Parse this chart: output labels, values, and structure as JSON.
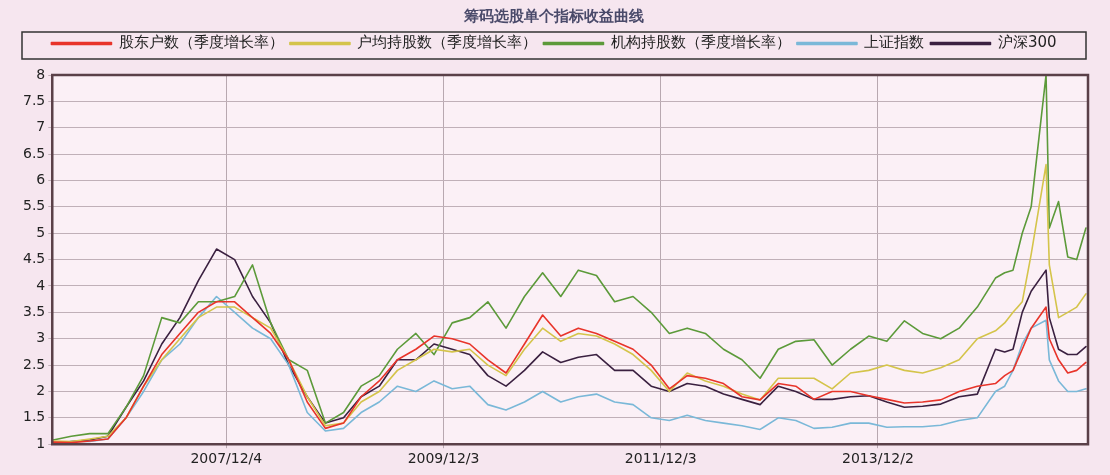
{
  "chart_data": {
    "type": "line",
    "title": "筹码选股单个指标收益曲线",
    "x": [
      "2006-05",
      "2006-07",
      "2006-09",
      "2006-11",
      "2007-01",
      "2007-03",
      "2007-05",
      "2007-07",
      "2007-09",
      "2007-11",
      "2008-01",
      "2008-03",
      "2008-05",
      "2008-07",
      "2008-09",
      "2008-11",
      "2009-01",
      "2009-03",
      "2009-05",
      "2009-07",
      "2009-09",
      "2009-11",
      "2010-01",
      "2010-03",
      "2010-05",
      "2010-07",
      "2010-09",
      "2010-11",
      "2011-01",
      "2011-03",
      "2011-05",
      "2011-07",
      "2011-09",
      "2011-11",
      "2012-01",
      "2012-03",
      "2012-05",
      "2012-07",
      "2012-09",
      "2012-11",
      "2013-01",
      "2013-03",
      "2013-05",
      "2013-07",
      "2013-09",
      "2013-11",
      "2014-01",
      "2014-03",
      "2014-05",
      "2014-07",
      "2014-09",
      "2014-11",
      "2015-01",
      "2015-02",
      "2015-03",
      "2015-04",
      "2015-05",
      "2015-06-20",
      "2015-07",
      "2015-08",
      "2015-09",
      "2015-10",
      "2015-11"
    ],
    "series": [
      {
        "name": "股东户数（季度增长率）",
        "color": "#e8342a",
        "values": [
          1.04,
          1.03,
          1.06,
          1.1,
          1.5,
          2.1,
          2.7,
          3.1,
          3.5,
          3.7,
          3.7,
          3.4,
          3.1,
          2.6,
          1.8,
          1.3,
          1.4,
          1.9,
          2.2,
          2.6,
          2.8,
          3.05,
          3.0,
          2.9,
          2.6,
          2.35,
          2.9,
          3.45,
          3.05,
          3.2,
          3.1,
          2.95,
          2.8,
          2.5,
          2.05,
          2.3,
          2.25,
          2.15,
          1.9,
          1.84,
          2.15,
          2.1,
          1.85,
          2.0,
          2.0,
          1.92,
          1.85,
          1.78,
          1.8,
          1.84,
          2.0,
          2.1,
          2.15,
          2.3,
          2.4,
          2.8,
          3.2,
          3.6,
          3.0,
          2.6,
          2.35,
          2.4,
          2.55
        ]
      },
      {
        "name": "户均持股数（季度增长率）",
        "color": "#d4c44a",
        "values": [
          1.06,
          1.05,
          1.1,
          1.15,
          1.5,
          2.1,
          2.6,
          3.0,
          3.4,
          3.6,
          3.6,
          3.4,
          3.2,
          2.6,
          1.9,
          1.35,
          1.4,
          1.8,
          2.0,
          2.4,
          2.6,
          2.8,
          2.75,
          2.8,
          2.5,
          2.3,
          2.8,
          3.2,
          2.95,
          3.1,
          3.05,
          2.9,
          2.7,
          2.4,
          2.0,
          2.35,
          2.2,
          2.1,
          1.95,
          1.84,
          2.25,
          2.25,
          2.25,
          2.05,
          2.35,
          2.4,
          2.5,
          2.4,
          2.35,
          2.45,
          2.6,
          3.0,
          3.15,
          3.3,
          3.5,
          3.7,
          4.6,
          6.3,
          4.4,
          3.4,
          3.5,
          3.6,
          3.85
        ]
      },
      {
        "name": "机构持股数（季度增长率）",
        "color": "#5c9a3a",
        "values": [
          1.08,
          1.15,
          1.2,
          1.2,
          1.7,
          2.3,
          3.4,
          3.3,
          3.7,
          3.7,
          3.8,
          4.4,
          3.3,
          2.6,
          2.4,
          1.4,
          1.6,
          2.1,
          2.3,
          2.8,
          3.1,
          2.7,
          3.3,
          3.4,
          3.7,
          3.2,
          3.8,
          4.25,
          3.8,
          4.3,
          4.2,
          3.7,
          3.8,
          3.5,
          3.1,
          3.2,
          3.1,
          2.8,
          2.6,
          2.25,
          2.8,
          2.95,
          2.98,
          2.5,
          2.8,
          3.05,
          2.95,
          3.34,
          3.1,
          3.0,
          3.2,
          3.6,
          4.15,
          4.25,
          4.3,
          5.0,
          5.5,
          8.0,
          5.1,
          5.6,
          4.55,
          4.5,
          5.1
        ]
      },
      {
        "name": "上证指数",
        "color": "#7ab8d8",
        "values": [
          1.02,
          1.05,
          1.05,
          1.1,
          1.5,
          2.0,
          2.6,
          2.9,
          3.4,
          3.8,
          3.5,
          3.2,
          3.0,
          2.5,
          1.6,
          1.25,
          1.3,
          1.6,
          1.8,
          2.1,
          2.0,
          2.2,
          2.05,
          2.1,
          1.75,
          1.65,
          1.8,
          2.0,
          1.8,
          1.9,
          1.95,
          1.8,
          1.75,
          1.5,
          1.45,
          1.55,
          1.45,
          1.4,
          1.35,
          1.28,
          1.5,
          1.45,
          1.3,
          1.32,
          1.4,
          1.4,
          1.32,
          1.33,
          1.33,
          1.36,
          1.45,
          1.5,
          2.0,
          2.1,
          2.4,
          2.9,
          3.2,
          3.35,
          2.6,
          2.2,
          2.0,
          2.0,
          2.05
        ]
      },
      {
        "name": "沪深300",
        "color": "#3a2040",
        "values": [
          1.0,
          1.05,
          1.08,
          1.15,
          1.7,
          2.2,
          2.9,
          3.4,
          4.1,
          4.7,
          4.5,
          3.8,
          3.3,
          2.5,
          1.9,
          1.4,
          1.5,
          1.9,
          2.1,
          2.6,
          2.6,
          2.9,
          2.8,
          2.7,
          2.3,
          2.1,
          2.4,
          2.75,
          2.55,
          2.65,
          2.7,
          2.4,
          2.4,
          2.1,
          2.0,
          2.15,
          2.1,
          1.95,
          1.85,
          1.75,
          2.1,
          2.0,
          1.85,
          1.85,
          1.9,
          1.92,
          1.8,
          1.7,
          1.72,
          1.76,
          1.9,
          1.95,
          2.8,
          2.75,
          2.8,
          3.5,
          3.9,
          4.3,
          3.4,
          2.8,
          2.7,
          2.7,
          2.85
        ]
      }
    ],
    "xlim": [
      "2006-04-28",
      "2015-11-08"
    ],
    "xticks": [
      {
        "value": "2007-12-04",
        "label": "2007/12/4"
      },
      {
        "value": "2009-12-03",
        "label": "2009/12/3"
      },
      {
        "value": "2011-12-03",
        "label": "2011/12/3"
      },
      {
        "value": "2013-12-02",
        "label": "2013/12/2"
      }
    ],
    "ylim": [
      1,
      8
    ],
    "yticks": [
      1,
      1.5,
      2,
      2.5,
      3,
      3.5,
      4,
      4.5,
      5,
      5.5,
      6,
      6.5,
      7,
      7.5,
      8
    ],
    "grid": true,
    "legend": "top",
    "marker": "none",
    "line_style": "solid"
  }
}
